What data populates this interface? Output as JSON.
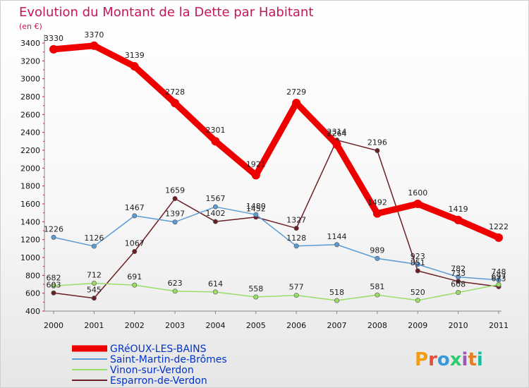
{
  "chart_data": {
    "type": "line",
    "title": "Evolution du Montant de la Dette par Habitant",
    "subtitle": "(en €)",
    "categories": [
      "2000",
      "2001",
      "2002",
      "2003",
      "2004",
      "2005",
      "2006",
      "2007",
      "2008",
      "2009",
      "2010",
      "2011"
    ],
    "ylim": [
      400,
      3400
    ],
    "yticks": [
      400,
      600,
      800,
      1000,
      1200,
      1400,
      1600,
      1800,
      2000,
      2200,
      2400,
      2600,
      2800,
      3000,
      3200,
      3400
    ],
    "grid": false,
    "legend": "bottom-left",
    "series": [
      {
        "name": "GRéOUX-LES-BAINS",
        "color": "#ee0000",
        "values": [
          3330,
          3370,
          3139,
          2728,
          2301,
          1921,
          2729,
          2264,
          1492,
          1600,
          1419,
          1222
        ]
      },
      {
        "name": "Saint-Martin-de-Brômes",
        "color": "#5b9bd5",
        "values": [
          1226,
          1126,
          1467,
          1397,
          1567,
          1480,
          1128,
          1144,
          989,
          923,
          782,
          748
        ]
      },
      {
        "name": "Vinon-sur-Verdon",
        "color": "#99dd66",
        "values": [
          682,
          712,
          691,
          623,
          614,
          558,
          577,
          518,
          581,
          520,
          608,
          697
        ]
      },
      {
        "name": "Esparron-de-Verdon",
        "color": "#6b1f24",
        "values": [
          603,
          545,
          1067,
          1659,
          1402,
          1452,
          1327,
          2314,
          2196,
          851,
          733,
          673
        ]
      }
    ]
  },
  "logo": {
    "text": "Proxiti",
    "colors": [
      "#f39c12",
      "#e74c3c",
      "#3498db",
      "#2ecc71",
      "#9b59b6",
      "#e67e22",
      "#1abc9c"
    ]
  }
}
